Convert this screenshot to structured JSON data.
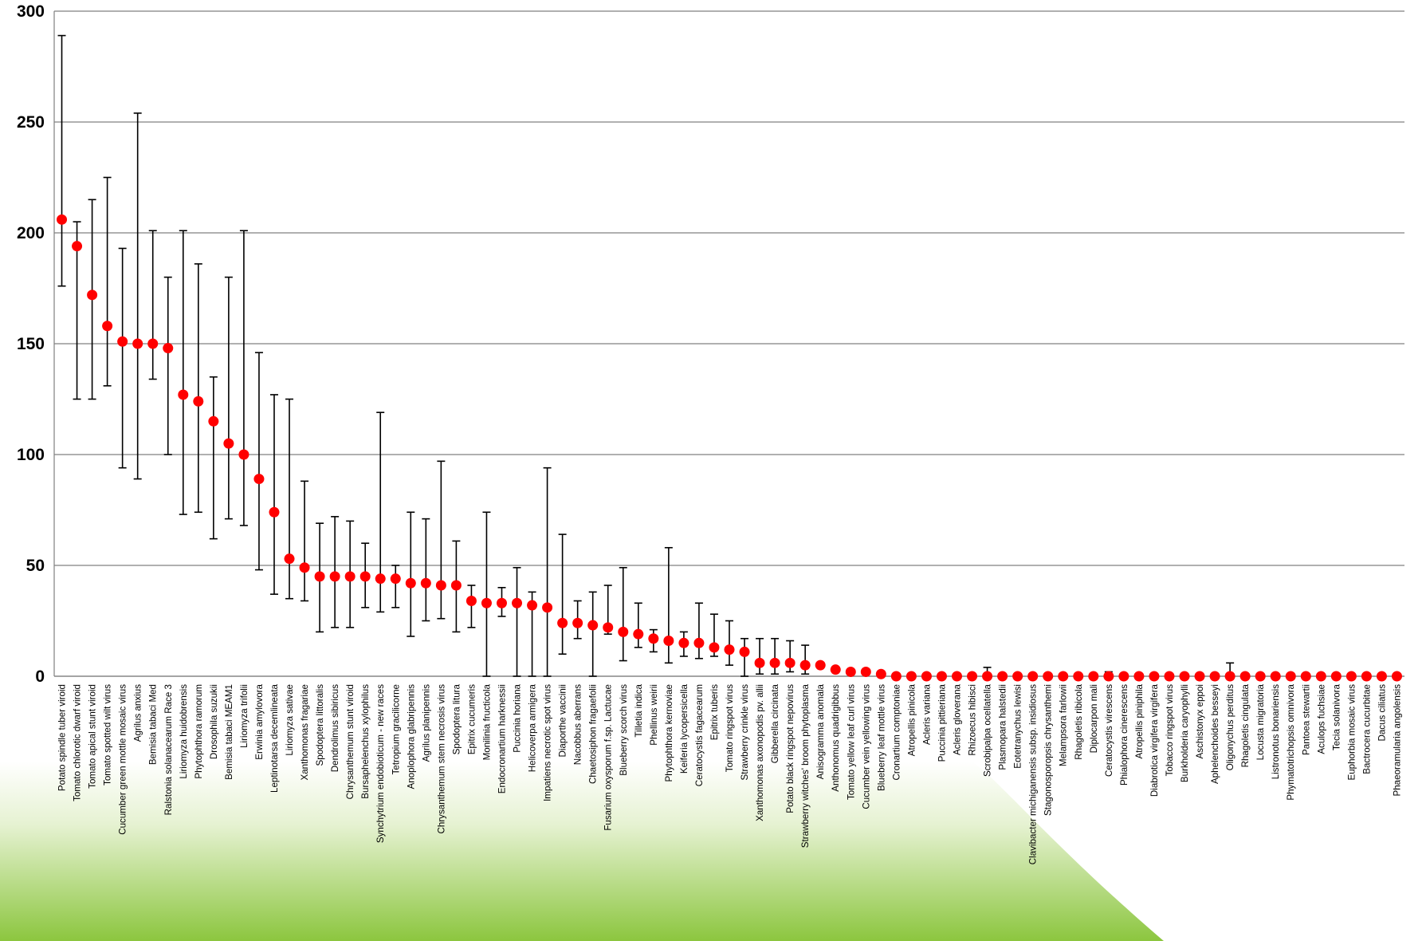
{
  "chart_data": {
    "type": "scatter",
    "title": "",
    "xlabel": "",
    "ylabel": "",
    "ylim": [
      0,
      300
    ],
    "yticks": [
      "0",
      "50",
      "100",
      "150",
      "200",
      "250",
      "300"
    ],
    "grid": "horizontal",
    "legend": "none",
    "colors": {
      "marker": "#ff0000",
      "errorbar": "#000000",
      "grid": "#808080",
      "background_gradient": [
        "#ffffff",
        "#8cc63f"
      ]
    },
    "categories": [
      "Potato spindle tuber viroid",
      "Tomato chlorotic dwarf viroid",
      "Tomato apical stunt viroid",
      "Tomato spotted wilt virus",
      "Cucumber green mottle mosaic virus",
      "Agrilus anxius",
      "Bemisia tabaci Med",
      "Ralstonia solanacearum  Race 3",
      "Liriomyza huidobrensis",
      "Phytophthora ramorum",
      "Drosophila suzukii",
      "Bemisia tabaci MEAM1",
      "Liriomyza trifolii",
      "Erwinia amylovora",
      "Leptinotarsa decemlineata",
      "Liriomyza sativae",
      "Xanthomonas fragariae",
      "Spodoptera littoralis",
      "Dendrolimus sibiricus",
      "Chrysanthemum stunt viroid",
      "Bursaphelenchus xylophilus",
      "Synchytrium endobioticum - new races",
      "Tetropium gracilicorne",
      "Anoplophora glabripennis",
      "Agrilus planipennis",
      "Chrysanthemum stem necrosis virus",
      "Spodoptera litura",
      "Epitrix cucumeris",
      "Monilinia fructicola",
      "Endocronartium harknessii",
      "Puccinia horiana",
      "Helicoverpa armigera",
      "Impatiens necrotic spot virus",
      "Diaporthe vaccinii",
      "Nacobbus aberrans",
      "Chaetosiphon fragaefolii",
      "Fusarium oxysporum f.sp. Lactucae",
      "Blueberry scorch virus",
      "Tilletia indica",
      "Phellinus weirii",
      "Phytophthora kernoviae",
      "Keiferia lycopersicella",
      "Ceratocystis fagacearum",
      "Epitrix tuberis",
      "Tomato ringspot virus",
      "Strawberry crinkle virus",
      "Xanthomonas axonopodis pv. allii",
      "Gibberella circinata",
      "Potato black ringspot nepovirus",
      "Strawberry witches' broom phytoplasma",
      "Anisogramma anomala",
      "Anthonomus quadrigibbus",
      "Tomato yellow leaf curl virus",
      "Cucumber vein yellowing virus",
      "Blueberry leaf mottle virus",
      "Cronartium comptoniae",
      "Atropellis pinicola",
      "Acleris variana",
      "Puccinia pittieriana",
      "Acleris gloverana",
      "Rhizoecus hibisci",
      "Scrobipalpa ocellatella",
      "Plasmopara halstedii",
      "Eotetranychus lewisi",
      "Clavibacter michiganensis subsp. insidiosus",
      "Stagonosporopsis chrysanthemi",
      "Melampsora farlowii",
      "Rhagoletis ribicola",
      "Diplocarpon mali",
      "Ceratocystis virescens",
      "Phialophora cinerescens",
      "Atropellis piniphila",
      "Diabrotica virgifera virgifera",
      "Tobacco ringspot virus",
      "Burkholderia caryophylli",
      "Aschistonyx eppoi",
      "Aphelenchoides besseyi",
      "Oligonychus perditus",
      "Rhagoletis cingulata",
      "Locusta migratoria",
      "Listronotus bonariensis",
      "Phymatotrichopsis omnivora",
      "Pantoea stewartii",
      "Aculops fuchsiae",
      "Tecia solanivora",
      "Euphorbia mosaic virus",
      "Bactrocera cucurbitae",
      "Dacus ciliatus",
      "Phaeoramularia angolensis"
    ],
    "values": [
      206,
      194,
      172,
      158,
      151,
      150,
      150,
      148,
      127,
      124,
      115,
      105,
      100,
      89,
      74,
      53,
      49,
      45,
      45,
      45,
      45,
      44,
      44,
      42,
      42,
      41,
      41,
      34,
      33,
      33,
      33,
      32,
      31,
      24,
      24,
      23,
      22,
      20,
      19,
      17,
      16,
      15,
      15,
      13,
      12,
      11,
      6,
      6,
      6,
      5,
      5,
      3,
      2,
      2,
      1,
      0,
      0,
      0,
      0,
      0,
      0,
      0,
      0,
      0,
      0,
      0,
      0,
      0,
      0,
      0,
      0,
      0,
      0,
      0,
      0,
      0,
      0,
      0,
      0,
      0,
      0,
      0,
      0,
      0,
      0,
      0,
      0,
      0,
      0
    ],
    "error_low": [
      176,
      125,
      125,
      131,
      94,
      89,
      134,
      100,
      73,
      74,
      62,
      71,
      68,
      48,
      37,
      35,
      34,
      20,
      22,
      22,
      31,
      29,
      31,
      18,
      25,
      26,
      20,
      22,
      0,
      27,
      0,
      0,
      0,
      10,
      17,
      0,
      19,
      7,
      13,
      11,
      6,
      9,
      8,
      9,
      5,
      0,
      1,
      1,
      2,
      1,
      4,
      2,
      2,
      1,
      0,
      0,
      0,
      0,
      0,
      0,
      0,
      0,
      0,
      0,
      0,
      0,
      0,
      0,
      0,
      0,
      0,
      0,
      0,
      0,
      0,
      0,
      0,
      0,
      0,
      0,
      0,
      0,
      0,
      0,
      0,
      0,
      0,
      0,
      0
    ],
    "error_high": [
      289,
      205,
      215,
      225,
      193,
      254,
      201,
      180,
      201,
      186,
      135,
      180,
      201,
      146,
      127,
      125,
      88,
      69,
      72,
      70,
      60,
      119,
      50,
      74,
      71,
      97,
      61,
      41,
      74,
      40,
      49,
      38,
      94,
      64,
      34,
      38,
      41,
      49,
      33,
      21,
      58,
      20,
      33,
      28,
      25,
      17,
      17,
      17,
      16,
      14,
      6,
      3,
      3,
      2,
      1,
      0,
      0,
      0,
      0,
      0,
      0,
      4,
      0,
      0,
      0,
      0,
      0,
      0,
      0,
      2,
      0,
      0,
      0,
      0,
      0,
      0,
      0,
      6,
      0,
      0,
      0,
      0,
      0,
      0,
      0,
      0,
      0,
      0,
      0
    ]
  }
}
